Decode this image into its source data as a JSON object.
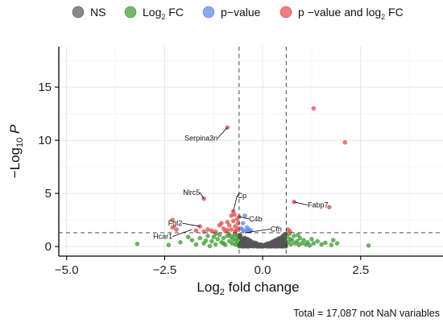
{
  "legend": {
    "items": [
      {
        "label": "NS",
        "sub": "",
        "tail": "",
        "color": "#555555"
      },
      {
        "label": "Log",
        "sub": "2",
        "tail": " FC",
        "color": "#3a9a2f"
      },
      {
        "label": "p−value",
        "sub": "",
        "tail": "",
        "color": "#5b83e6"
      },
      {
        "label": "p −value and log",
        "sub": "2",
        "tail": " FC",
        "color": "#e24848"
      }
    ]
  },
  "chart_data": {
    "type": "scatter",
    "title": "",
    "xlabel": {
      "pre": "Log",
      "sub": "2",
      "post": " fold change"
    },
    "ylabel": {
      "pre": "−Log",
      "sub": "10",
      "post": " ",
      "italic": "P"
    },
    "xlim": [
      -5.2,
      4.6
    ],
    "ylim": [
      -0.9,
      18.8
    ],
    "xticks": [
      {
        "value": -5.0,
        "label": "−5.0"
      },
      {
        "value": -2.5,
        "label": "−2.5"
      },
      {
        "value": 0.0,
        "label": "0.0"
      },
      {
        "value": 2.5,
        "label": "2.5"
      }
    ],
    "yticks": [
      {
        "value": 0,
        "label": "0"
      },
      {
        "value": 5,
        "label": "5"
      },
      {
        "value": 10,
        "label": "10"
      },
      {
        "value": 15,
        "label": "15"
      }
    ],
    "grid": true,
    "legend_position": "top",
    "thresholds": {
      "fc": [
        -0.6,
        0.6
      ],
      "p": 1.3
    },
    "colors": {
      "ns": "#555555",
      "fc": "#3a9a2f",
      "p": "#5b83e6",
      "both": "#e24848"
    },
    "series": {
      "both": [
        [
          1.3,
          13.0
        ],
        [
          2.1,
          9.8
        ],
        [
          -0.9,
          11.2
        ],
        [
          -1.5,
          4.5
        ],
        [
          0.8,
          4.2
        ],
        [
          1.7,
          3.7
        ],
        [
          -0.75,
          3.3
        ],
        [
          -0.6,
          2.8
        ],
        [
          -2.3,
          2.5
        ],
        [
          -2.2,
          1.6
        ],
        [
          -2.3,
          1.8
        ],
        [
          -1.7,
          1.5
        ],
        [
          -1.6,
          1.9
        ],
        [
          -1.4,
          1.6
        ],
        [
          -1.2,
          1.4
        ],
        [
          -1.1,
          2.0
        ],
        [
          -1.0,
          1.7
        ],
        [
          -0.95,
          1.45
        ],
        [
          -0.9,
          2.3
        ],
        [
          -0.85,
          2.0
        ],
        [
          -0.8,
          1.6
        ],
        [
          -0.75,
          2.4
        ],
        [
          -0.7,
          1.9
        ],
        [
          -0.68,
          1.5
        ],
        [
          -0.65,
          2.6
        ],
        [
          -0.63,
          2.2
        ],
        [
          -0.62,
          1.7
        ],
        [
          -0.7,
          1.35
        ],
        [
          -0.8,
          2.9
        ],
        [
          -0.9,
          1.55
        ],
        [
          -1.3,
          1.5
        ],
        [
          -1.5,
          1.4
        ],
        [
          -1.05,
          2.2
        ],
        [
          -0.72,
          3.0
        ],
        [
          0.7,
          1.4
        ],
        [
          0.65,
          1.6
        ]
      ],
      "p": [
        [
          -0.45,
          2.9
        ],
        [
          -0.4,
          1.8
        ],
        [
          -0.35,
          1.6
        ],
        [
          -0.5,
          2.2
        ],
        [
          -0.3,
          1.5
        ],
        [
          -0.42,
          1.45
        ],
        [
          -0.55,
          1.7
        ],
        [
          -0.5,
          1.55
        ]
      ],
      "fc": [
        [
          -3.2,
          0.25
        ],
        [
          2.7,
          0.1
        ],
        [
          -2.1,
          0.4
        ],
        [
          -1.9,
          0.9
        ],
        [
          -1.8,
          0.6
        ],
        [
          -1.6,
          0.8
        ],
        [
          -1.5,
          0.3
        ],
        [
          -1.4,
          1.0
        ],
        [
          -1.3,
          0.5
        ],
        [
          -1.25,
          0.9
        ],
        [
          -1.2,
          0.2
        ],
        [
          -1.15,
          0.7
        ],
        [
          -1.1,
          1.1
        ],
        [
          -1.05,
          0.4
        ],
        [
          -1.0,
          0.8
        ],
        [
          -0.95,
          0.15
        ],
        [
          -0.9,
          1.0
        ],
        [
          -0.85,
          0.5
        ],
        [
          -0.8,
          0.9
        ],
        [
          -0.78,
          0.3
        ],
        [
          -0.75,
          0.7
        ],
        [
          -0.72,
          1.1
        ],
        [
          -0.7,
          0.2
        ],
        [
          -0.68,
          0.6
        ],
        [
          -0.66,
          1.0
        ],
        [
          -0.64,
          0.4
        ],
        [
          -0.62,
          0.8
        ],
        [
          -0.62,
          0.1
        ],
        [
          -1.7,
          0.2
        ],
        [
          -2.4,
          0.15
        ],
        [
          -1.35,
          0.05
        ],
        [
          -1.0,
          0.3
        ],
        [
          -0.85,
          1.15
        ],
        [
          -1.45,
          0.55
        ],
        [
          -1.2,
          1.2
        ],
        [
          0.62,
          0.9
        ],
        [
          0.65,
          0.4
        ],
        [
          0.7,
          0.7
        ],
        [
          0.72,
          0.2
        ],
        [
          0.75,
          0.6
        ],
        [
          0.8,
          1.0
        ],
        [
          0.82,
          0.3
        ],
        [
          0.88,
          0.5
        ],
        [
          0.92,
          0.15
        ],
        [
          0.95,
          0.8
        ],
        [
          1.0,
          0.3
        ],
        [
          1.05,
          0.6
        ],
        [
          1.1,
          0.2
        ],
        [
          1.15,
          0.4
        ],
        [
          1.2,
          0.1
        ],
        [
          1.3,
          0.3
        ],
        [
          1.4,
          0.5
        ],
        [
          1.5,
          0.2
        ],
        [
          1.6,
          0.35
        ],
        [
          1.75,
          0.15
        ],
        [
          1.9,
          0.3
        ],
        [
          1.8,
          0.6
        ],
        [
          0.68,
          1.2
        ],
        [
          1.25,
          0.7
        ],
        [
          0.9,
          1.1
        ]
      ],
      "ns": {
        "generated_from": "density under thresholds",
        "x_range": [
          -0.6,
          0.6
        ],
        "count": 420
      }
    },
    "annotations": [
      {
        "label": "Serpina3n",
        "x": -0.9,
        "y": 11.2,
        "tx": -1.15,
        "ty": 10.2
      },
      {
        "label": "Nlrc5",
        "x": -1.5,
        "y": 4.5,
        "tx": -1.6,
        "ty": 5.1
      },
      {
        "label": "Cp",
        "x": -0.75,
        "y": 3.3,
        "tx": -0.65,
        "ty": 4.8
      },
      {
        "label": "Fabp7",
        "x": 0.8,
        "y": 4.2,
        "tx": 1.15,
        "ty": 3.9
      },
      {
        "label": "C4b",
        "x": -0.6,
        "y": 2.8,
        "tx": -0.35,
        "ty": 2.6
      },
      {
        "label": "Fgl2",
        "x": -1.6,
        "y": 1.9,
        "tx": -2.05,
        "ty": 2.2
      },
      {
        "label": "Cfh",
        "x": -0.45,
        "y": 1.3,
        "tx": 0.2,
        "ty": 1.65
      },
      {
        "label": "Hcar1",
        "x": -1.8,
        "y": 1.6,
        "tx": -2.3,
        "ty": 0.95
      }
    ]
  },
  "footer": {
    "caption": "Total = 17,087 not NaN variables"
  }
}
